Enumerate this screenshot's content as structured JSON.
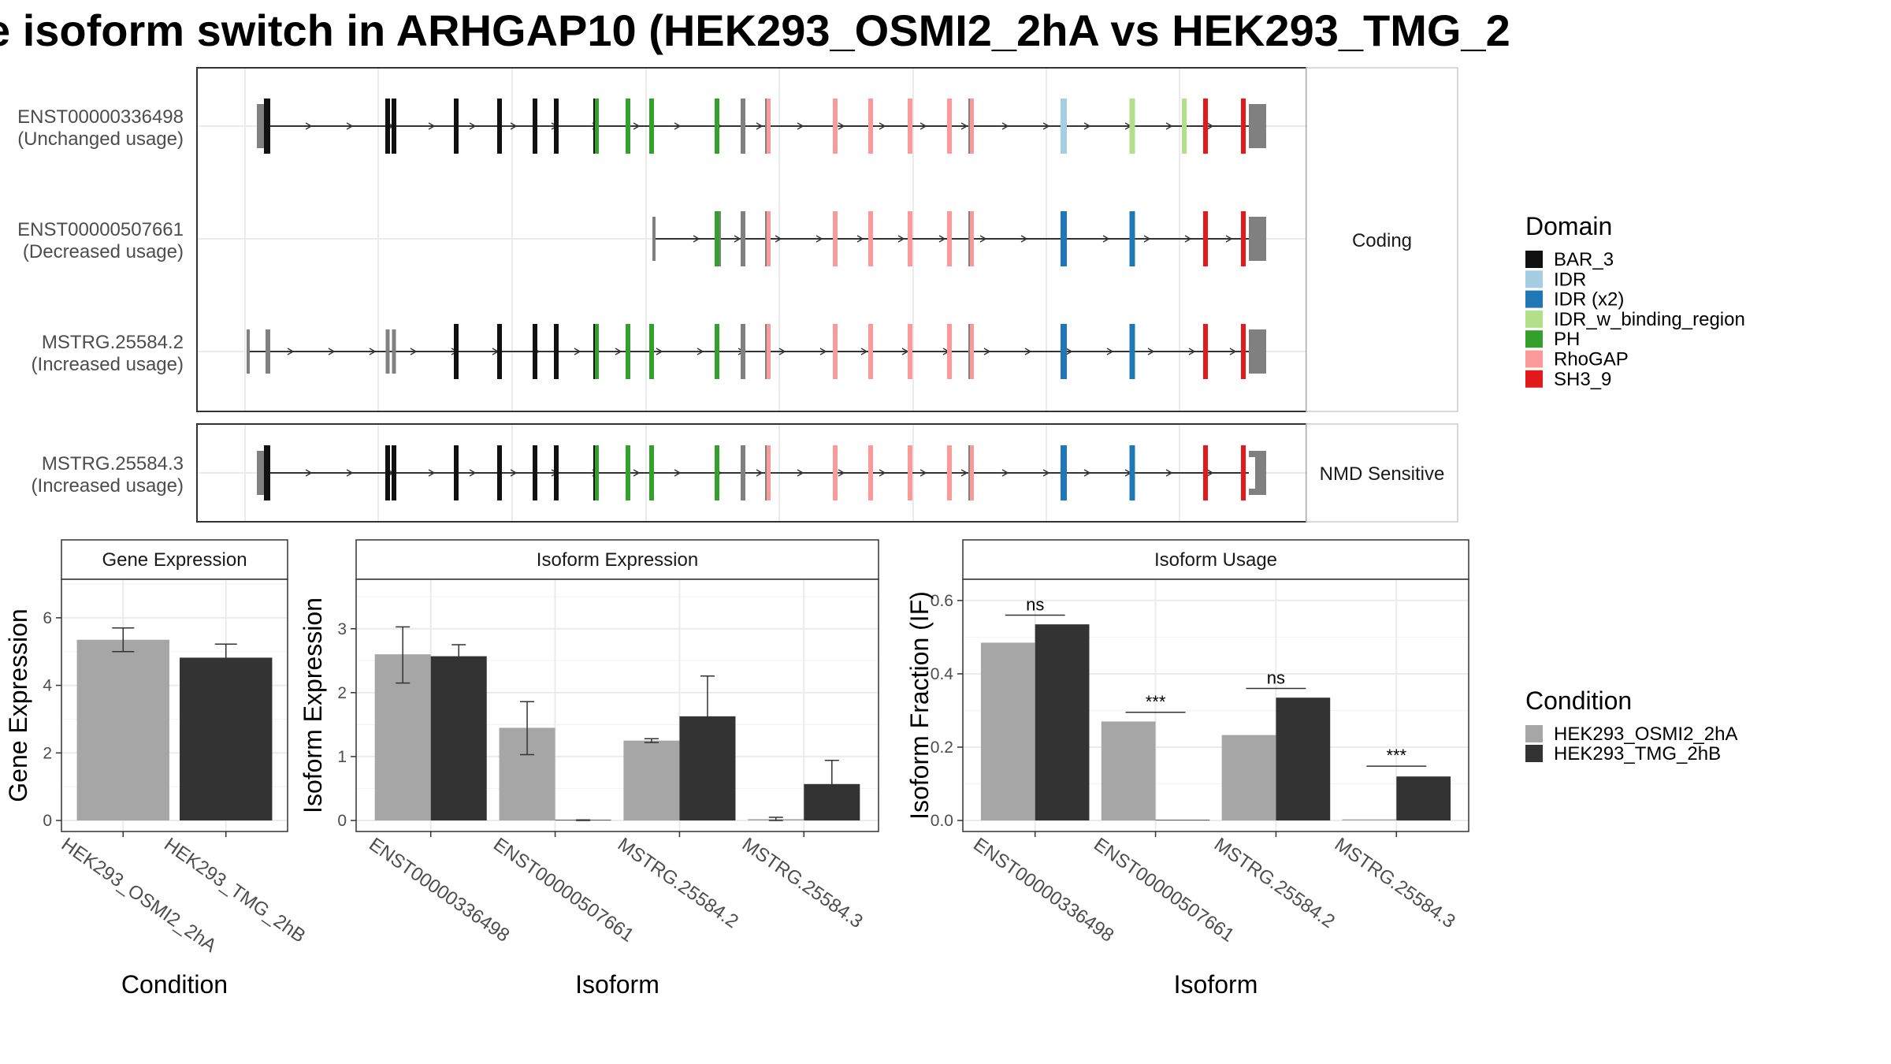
{
  "title": "e isoform switch in ARHGAP10 (HEK293_OSMI2_2hA vs HEK293_TMG_2",
  "colors": {
    "BAR_3": "#111111",
    "IDR": "#a6cee3",
    "IDR (x2)": "#1f78b4",
    "IDR_w_binding_region": "#b2df8a",
    "PH": "#33a02c",
    "RhoGAP": "#fb9a99",
    "SH3_9": "#e31a1c",
    "noncoding": "#808080",
    "cond_a": "#a6a6a6",
    "cond_b": "#333333"
  },
  "transcripts": {
    "groups": [
      {
        "label": "Coding",
        "rows": [
          {
            "name": "ENST00000336498",
            "usage": "(Unchanged usage)",
            "variant": "full",
            "idr_color": "IDR_lightblue",
            "late_color": "IDR_w_binding_region"
          },
          {
            "name": "ENST00000507661",
            "usage": "(Decreased usage)",
            "variant": "short"
          },
          {
            "name": "MSTRG.25584.2",
            "usage": "(Increased usage)",
            "variant": "alt_start"
          }
        ]
      },
      {
        "label": "NMD Sensitive",
        "rows": [
          {
            "name": "MSTRG.25584.3",
            "usage": "(Increased usage)",
            "variant": "nmd"
          }
        ]
      }
    ]
  },
  "legends": {
    "domain": {
      "title": "Domain",
      "items": [
        "BAR_3",
        "IDR",
        "IDR (x2)",
        "IDR_w_binding_region",
        "PH",
        "RhoGAP",
        "SH3_9"
      ]
    },
    "condition": {
      "title": "Condition",
      "items": [
        "HEK293_OSMI2_2hA",
        "HEK293_TMG_2hB"
      ]
    }
  },
  "chart_data": [
    {
      "type": "bar",
      "title": "Gene Expression",
      "xlabel": "Condition",
      "ylabel": "Gene Expression",
      "ylim": [
        0,
        7
      ],
      "yticks": [
        0,
        2,
        4,
        6
      ],
      "categories": [
        "HEK293_OSMI2_2hA",
        "HEK293_TMG_2hB"
      ],
      "values": [
        5.35,
        4.82
      ],
      "error_low": [
        5.0,
        4.45
      ],
      "error_high": [
        5.7,
        5.22
      ]
    },
    {
      "type": "bar",
      "title": "Isoform Expression",
      "xlabel": "Isoform",
      "ylabel": "Isoform Expression",
      "ylim": [
        0,
        3.7
      ],
      "yticks": [
        0,
        1,
        2,
        3
      ],
      "categories": [
        "ENST00000336498",
        "ENST00000507661",
        "MSTRG.25584.2",
        "MSTRG.25584.3"
      ],
      "series": [
        {
          "name": "HEK293_OSMI2_2hA",
          "values": [
            2.6,
            1.45,
            1.25,
            0.02
          ],
          "error_low": [
            2.15,
            1.03,
            1.22,
            0.0
          ],
          "error_high": [
            3.03,
            1.86,
            1.28,
            0.05
          ]
        },
        {
          "name": "HEK293_TMG_2hB",
          "values": [
            2.57,
            0.0,
            1.63,
            0.57
          ],
          "error_low": [
            2.4,
            0.0,
            1.0,
            0.2
          ],
          "error_high": [
            2.75,
            0.01,
            2.26,
            0.94
          ]
        }
      ]
    },
    {
      "type": "bar",
      "title": "Isoform Usage",
      "xlabel": "Isoform",
      "ylabel": "Isoform Fraction (IF)",
      "ylim": [
        0,
        0.645
      ],
      "yticks": [
        "0.0",
        "0.2",
        "0.4",
        "0.6"
      ],
      "categories": [
        "ENST00000336498",
        "ENST00000507661",
        "MSTRG.25584.2",
        "MSTRG.25584.3"
      ],
      "series": [
        {
          "name": "HEK293_OSMI2_2hA",
          "values": [
            0.485,
            0.27,
            0.233,
            0.003
          ]
        },
        {
          "name": "HEK293_TMG_2hB",
          "values": [
            0.535,
            0.0,
            0.335,
            0.12
          ]
        }
      ],
      "significance": [
        {
          "label": "ns",
          "at": 0.56
        },
        {
          "label": "***",
          "at": 0.295
        },
        {
          "label": "ns",
          "at": 0.36
        },
        {
          "label": "***",
          "at": 0.148
        }
      ]
    }
  ]
}
